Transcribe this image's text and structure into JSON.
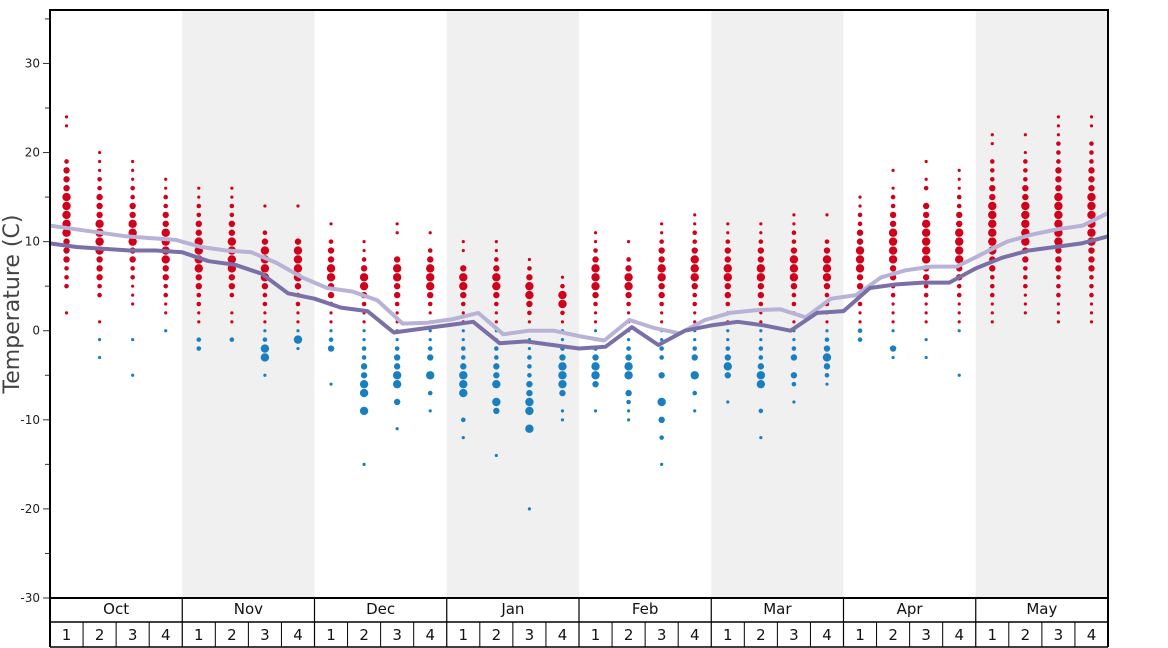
{
  "chart_data": {
    "type": "scatter",
    "title": "",
    "ylabel": "Temperature (C)",
    "xlabel": "",
    "ylim": [
      -30,
      36
    ],
    "yticks": [
      30,
      20,
      10,
      0,
      -10,
      -20,
      -30
    ],
    "months": [
      "Oct",
      "Nov",
      "Dec",
      "Jan",
      "Feb",
      "Mar",
      "Apr",
      "May"
    ],
    "weeks": [
      "1",
      "2",
      "3",
      "4"
    ],
    "colors": {
      "above_zero": "#d0021b",
      "below_zero": "#1a7fc1",
      "upper_line": "#b8b2d6",
      "lower_line": "#7b6fa8",
      "shade": "#f0f0f0"
    },
    "series": [
      {
        "name": "",
        "values": [
          11.8,
          11.4,
          11.0,
          10.6,
          10.4,
          10.2,
          9.4,
          9.0,
          8.8,
          7.6,
          6.0,
          4.8,
          4.4,
          3.4,
          0.8,
          0.9,
          1.3,
          2.0,
          -0.4,
          0.0,
          0.0,
          -0.6,
          -1.1,
          1.2,
          0.3,
          -0.3,
          1.2,
          2.0,
          2.3,
          2.4,
          1.5,
          3.6,
          4.0,
          6.0,
          6.8,
          7.2,
          7.2,
          8.6,
          10.0,
          10.8,
          11.4,
          11.8,
          13.2
        ]
      },
      {
        "name": "",
        "values": [
          9.8,
          9.4,
          9.2,
          9.0,
          9.0,
          8.8,
          7.8,
          7.4,
          6.4,
          4.2,
          3.6,
          2.6,
          2.2,
          -0.2,
          0.2,
          0.6,
          1.0,
          -1.4,
          -1.2,
          -1.6,
          -2.0,
          -1.8,
          0.4,
          -1.6,
          0.0,
          0.6,
          1.0,
          0.6,
          0.0,
          2.0,
          2.2,
          4.8,
          5.2,
          5.4,
          5.4,
          7.0,
          8.2,
          9.0,
          9.4,
          9.8,
          10.6
        ]
      }
    ],
    "week_points": [
      {
        "above": [
          24,
          23,
          19,
          18,
          17,
          16,
          15,
          14,
          13,
          12,
          11,
          10,
          9,
          8,
          7,
          6,
          5,
          2
        ],
        "below": []
      },
      {
        "above": [
          20,
          19,
          18,
          17,
          16,
          15,
          14,
          13,
          12,
          11,
          10,
          9,
          8,
          7,
          6,
          5,
          4,
          1
        ],
        "below": [
          -1,
          -3
        ]
      },
      {
        "above": [
          19,
          18,
          17,
          16,
          15,
          14,
          13,
          12,
          11,
          10,
          9,
          8,
          7,
          6,
          5,
          4,
          3
        ],
        "below": [
          -1,
          -5
        ]
      },
      {
        "above": [
          17,
          16,
          15,
          14,
          13,
          12,
          11,
          10,
          9,
          8,
          7,
          6,
          5,
          4,
          3,
          2
        ],
        "below": [
          0
        ]
      },
      {
        "above": [
          16,
          15,
          14,
          13,
          12,
          11,
          10,
          9,
          8,
          7,
          6,
          5,
          4,
          3,
          2,
          1
        ],
        "below": [
          -1,
          -2
        ]
      },
      {
        "above": [
          16,
          15,
          14,
          13,
          12,
          11,
          10,
          9,
          8,
          7,
          6,
          5,
          4,
          2,
          1
        ],
        "below": [
          -1
        ]
      },
      {
        "above": [
          14,
          11,
          10,
          9,
          8,
          7,
          6,
          5,
          4,
          3,
          2,
          1
        ],
        "below": [
          0,
          -1,
          -2,
          -3,
          -5
        ]
      },
      {
        "above": [
          14,
          10,
          9,
          8,
          7,
          6,
          5,
          4,
          3,
          2,
          1
        ],
        "below": [
          0,
          -1,
          -2
        ]
      },
      {
        "above": [
          12,
          10,
          9,
          8,
          7,
          6,
          5,
          4,
          3,
          2,
          1
        ],
        "below": [
          0,
          -1,
          -2,
          -6
        ]
      },
      {
        "above": [
          10,
          9,
          8,
          7,
          6,
          5,
          4,
          3,
          2,
          1
        ],
        "below": [
          0,
          -1,
          -2,
          -3,
          -4,
          -5,
          -6,
          -7,
          -9,
          -15
        ]
      },
      {
        "above": [
          12,
          11,
          8,
          7,
          6,
          5,
          4,
          3,
          2,
          1
        ],
        "below": [
          0,
          -1,
          -2,
          -3,
          -4,
          -5,
          -6,
          -8,
          -11
        ]
      },
      {
        "above": [
          11,
          9,
          8,
          7,
          6,
          5,
          4,
          3,
          2,
          1
        ],
        "below": [
          0,
          -1,
          -2,
          -3,
          -5,
          -7,
          -9
        ]
      },
      {
        "above": [
          10,
          9,
          7,
          6,
          5,
          4,
          3,
          2,
          1
        ],
        "below": [
          0,
          -1,
          -2,
          -3,
          -4,
          -5,
          -6,
          -7,
          -10,
          -12
        ]
      },
      {
        "above": [
          10,
          9,
          8,
          7,
          6,
          5,
          4,
          3,
          2,
          1
        ],
        "below": [
          0,
          -1,
          -2,
          -3,
          -4,
          -5,
          -6,
          -8,
          -9,
          -14
        ]
      },
      {
        "above": [
          8,
          7,
          6,
          5,
          4,
          3,
          2,
          1
        ],
        "below": [
          0,
          -1,
          -2,
          -3,
          -4,
          -5,
          -6,
          -7,
          -8,
          -9,
          -11,
          -20
        ]
      },
      {
        "above": [
          6,
          5,
          4,
          3,
          2,
          1
        ],
        "below": [
          0,
          -1,
          -2,
          -3,
          -4,
          -5,
          -6,
          -7,
          -9,
          -10
        ]
      },
      {
        "above": [
          11,
          10,
          9,
          8,
          7,
          6,
          5,
          4,
          3,
          2,
          1
        ],
        "below": [
          0,
          -1,
          -2,
          -3,
          -4,
          -5,
          -6,
          -9
        ]
      },
      {
        "above": [
          10,
          8,
          7,
          6,
          5,
          4,
          3,
          2,
          1
        ],
        "below": [
          0,
          -1,
          -2,
          -3,
          -4,
          -5,
          -7,
          -8,
          -9,
          -10
        ]
      },
      {
        "above": [
          12,
          11,
          10,
          9,
          8,
          7,
          6,
          5,
          4,
          3,
          2,
          1
        ],
        "below": [
          0,
          -1,
          -2,
          -3,
          -5,
          -8,
          -10,
          -12,
          -15
        ]
      },
      {
        "above": [
          13,
          12,
          11,
          10,
          9,
          8,
          7,
          6,
          5,
          4,
          3,
          2,
          1
        ],
        "below": [
          0,
          -1,
          -2,
          -3,
          -5,
          -7,
          -9
        ]
      },
      {
        "above": [
          12,
          11,
          10,
          9,
          8,
          7,
          6,
          5,
          4,
          3,
          2,
          1
        ],
        "below": [
          0,
          -1,
          -2,
          -3,
          -4,
          -5,
          -8
        ]
      },
      {
        "above": [
          12,
          11,
          10,
          9,
          8,
          7,
          6,
          5,
          4,
          3,
          2,
          1
        ],
        "below": [
          0,
          -1,
          -2,
          -3,
          -4,
          -5,
          -6,
          -9,
          -12
        ]
      },
      {
        "above": [
          13,
          12,
          11,
          10,
          9,
          8,
          7,
          6,
          5,
          4,
          3,
          2,
          1
        ],
        "below": [
          0,
          -1,
          -2,
          -3,
          -5,
          -6,
          -8
        ]
      },
      {
        "above": [
          13,
          10,
          9,
          8,
          7,
          6,
          5,
          4,
          3,
          2,
          1
        ],
        "below": [
          0,
          -1,
          -2,
          -3,
          -4,
          -5,
          -6
        ]
      },
      {
        "above": [
          15,
          14,
          13,
          12,
          11,
          10,
          9,
          8,
          7,
          6,
          5,
          4,
          3,
          2,
          1
        ],
        "below": [
          0,
          -1
        ]
      },
      {
        "above": [
          18,
          16,
          15,
          14,
          13,
          12,
          11,
          10,
          9,
          8,
          7,
          6,
          5,
          4,
          3,
          2,
          1
        ],
        "below": [
          0,
          -2,
          -3
        ]
      },
      {
        "above": [
          19,
          17,
          16,
          14,
          13,
          12,
          11,
          10,
          9,
          8,
          7,
          6,
          5,
          4,
          3,
          2,
          1
        ],
        "below": [
          -1,
          -3
        ]
      },
      {
        "above": [
          18,
          17,
          16,
          15,
          14,
          13,
          12,
          11,
          10,
          9,
          8,
          7,
          6,
          5,
          4,
          3,
          2,
          1
        ],
        "below": [
          0,
          -5
        ]
      },
      {
        "above": [
          22,
          21,
          19,
          18,
          17,
          16,
          15,
          14,
          13,
          12,
          11,
          10,
          9,
          8,
          7,
          6,
          5,
          4,
          3,
          2,
          1
        ],
        "below": []
      },
      {
        "above": [
          22,
          20,
          19,
          18,
          17,
          16,
          15,
          14,
          13,
          12,
          11,
          10,
          9,
          8,
          7,
          6,
          5,
          4,
          3,
          2
        ],
        "below": []
      },
      {
        "above": [
          24,
          23,
          22,
          21,
          20,
          19,
          18,
          17,
          16,
          15,
          14,
          13,
          12,
          11,
          10,
          9,
          8,
          7,
          6,
          5,
          4,
          3,
          2,
          1
        ],
        "below": []
      },
      {
        "above": [
          24,
          23,
          21,
          20,
          19,
          18,
          17,
          16,
          15,
          14,
          13,
          12,
          11,
          10,
          9,
          8,
          7,
          6,
          5,
          4,
          3,
          2,
          1
        ],
        "below": []
      }
    ]
  }
}
